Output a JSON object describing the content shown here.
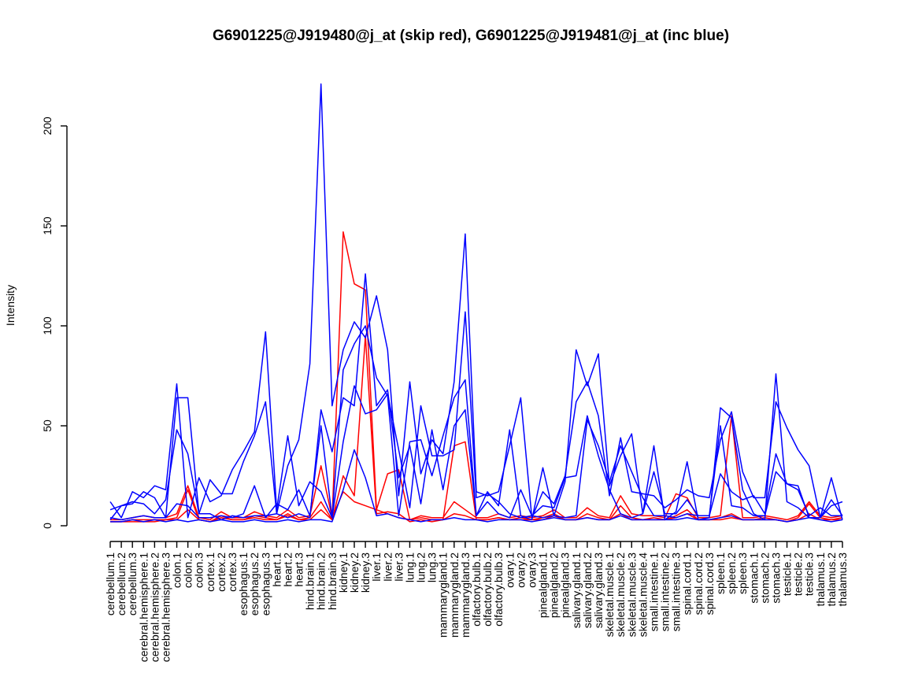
{
  "chart_data": {
    "type": "line",
    "title": "G6901225@J919480@j_at (skip red), G6901225@J919481@j_at (inc blue)",
    "xlabel": "",
    "ylabel": "Intensity",
    "ylim": [
      0,
      200
    ],
    "yticks": [
      0,
      50,
      100,
      150,
      200
    ],
    "grid": false,
    "categories": [
      "cerebellum.1",
      "cerebellum.2",
      "cerebellum.3",
      "cerebral.hemisphere.1",
      "cerebral.hemisphere.2",
      "cerebral.hemisphere.3",
      "colon.1",
      "colon.2",
      "colon.3",
      "cortex.1",
      "cortex.2",
      "cortex.3",
      "esophagus.1",
      "esophagus.2",
      "esophagus.3",
      "heart.1",
      "heart.2",
      "heart.3",
      "hind.brain.1",
      "hind.brain.2",
      "hind.brain.3",
      "kidney.1",
      "kidney.2",
      "kidney.3",
      "liver.1",
      "liver.2",
      "liver.3",
      "lung.1",
      "lung.2",
      "lung.3",
      "mammarygland.1",
      "mammarygland.2",
      "mammarygland.3",
      "olfactory.bulb.1",
      "olfactory.bulb.2",
      "olfactory.bulb.3",
      "ovary.1",
      "ovary.2",
      "ovary.3",
      "pinealgland.1",
      "pinealgland.2",
      "pinealgland.3",
      "salivary.gland.1",
      "salivary.gland.2",
      "salivary.gland.3",
      "skeletal.muscle.1",
      "skeletal.muscle.2",
      "skeletal.muscle.3",
      "skeletal.muscle.4",
      "small.intestine.1",
      "small.intestine.2",
      "small.intestine.3",
      "spinal.cord.1",
      "spinal.cord.2",
      "spinal.cord.3",
      "spleen.1",
      "spleen.2",
      "spleen.3",
      "stomach.1",
      "stomach.2",
      "stomach.3",
      "testicle.1",
      "testicle.2",
      "testicle.3",
      "thalamus.1",
      "thalamus.2",
      "thalamus.3"
    ],
    "tick_labels": [
      "cerebellum.1",
      "cerebellum.2",
      "cerebellum.3",
      "cerebral.hemisphere.1",
      "cerebral.hemisphere.2",
      "cerebral.hemisphere.3",
      "colon.1",
      "colon.2",
      "colon.3",
      "cortex.1",
      "cortex.2",
      "cortex.3",
      "esophagus.1",
      "esophagus.2",
      "esophagus.3",
      "heart.1",
      "heart.2",
      "heart.3",
      "hind.brain.1",
      "hind.brain.2",
      "hind.brain.3",
      "kidney.1",
      "kidney.2",
      "kidney.3",
      "liver.1",
      "liver.2",
      "liver.3",
      "lung.1",
      "lung.2",
      "lung.3",
      "mammarygland.1",
      "mammarygland.2",
      "mammarygland.3",
      "olfactory.bulb.1",
      "olfactory.bulb.2",
      "olfactory.bulb.3",
      "ovary.1",
      "ovary.2",
      "ovary.3",
      "pinealgland.1",
      "pinealgland.2",
      "pinealgland.3",
      "salivary.gland.1",
      "salivary.gland.2",
      "salivary.gland.3",
      "skeletal.muscle.1",
      "skeletal.muscle.2",
      "skeletal.muscle.3",
      "skeletal.muscle.4",
      "small.intestine.1",
      "small.intestine.2",
      "small.intestine.3",
      "spinal.cord.1",
      "spinal.cord.2",
      "spinal.cord.3",
      "spleen.1",
      "spleen.2",
      "spleen.3",
      "stomach.1",
      "stomach.2",
      "stomach.3",
      "testicle.1",
      "testicle.2",
      "testicle.3",
      "thalamus.1",
      "thalamus.2",
      "thalamus.3"
    ],
    "series": [
      {
        "color": "#ff0000",
        "values": [
          3,
          3,
          4,
          5,
          4,
          4,
          6,
          20,
          4,
          3,
          7,
          4,
          4,
          7,
          5,
          4,
          8,
          4,
          5,
          30,
          4,
          17,
          12,
          10,
          8,
          6,
          4,
          3,
          5,
          4,
          4,
          12,
          8,
          4,
          4,
          6,
          4,
          5,
          4,
          5,
          8,
          4,
          4,
          9,
          5,
          4,
          15,
          6,
          5,
          5,
          4,
          16,
          14,
          4,
          4,
          5,
          55,
          4,
          4,
          5,
          4,
          3,
          5,
          12,
          5,
          4,
          5
        ]
      },
      {
        "color": "#ff0000",
        "values": [
          2,
          2,
          3,
          3,
          3,
          3,
          4,
          18,
          3,
          2,
          5,
          3,
          3,
          5,
          4,
          3,
          6,
          3,
          4,
          12,
          3,
          147,
          121,
          118,
          8,
          26,
          28,
          3,
          4,
          3,
          3,
          40,
          42,
          3,
          3,
          4,
          3,
          4,
          3,
          4,
          6,
          3,
          3,
          6,
          4,
          3,
          10,
          4,
          3,
          4,
          3,
          5,
          8,
          3,
          3,
          4,
          6,
          3,
          3,
          4,
          3,
          2,
          4,
          11,
          4,
          3,
          4
        ]
      },
      {
        "color": "#ff0000",
        "values": [
          2,
          2,
          2,
          2,
          2,
          3,
          3,
          8,
          3,
          2,
          4,
          3,
          3,
          4,
          3,
          3,
          5,
          3,
          3,
          8,
          3,
          25,
          15,
          95,
          6,
          7,
          6,
          2,
          3,
          2,
          3,
          6,
          5,
          3,
          3,
          4,
          3,
          3,
          3,
          3,
          5,
          3,
          3,
          4,
          3,
          3,
          6,
          3,
          3,
          3,
          3,
          4,
          6,
          3,
          3,
          3,
          4,
          3,
          3,
          3,
          3,
          2,
          3,
          6,
          3,
          3,
          3
        ]
      },
      {
        "color": "#0000ff",
        "values": [
          12,
          4,
          17,
          14,
          20,
          18,
          71,
          4,
          24,
          12,
          15,
          28,
          37,
          47,
          97,
          8,
          45,
          10,
          22,
          17,
          4,
          78,
          91,
          100,
          74,
          65,
          5,
          42,
          43,
          25,
          45,
          64,
          73,
          5,
          17,
          10,
          48,
          5,
          3,
          29,
          5,
          22,
          88,
          70,
          86,
          20,
          35,
          46,
          6,
          40,
          3,
          7,
          32,
          3,
          4,
          59,
          54,
          18,
          6,
          3,
          76,
          12,
          9,
          4,
          4,
          24,
          3
        ]
      },
      {
        "color": "#0000ff",
        "values": [
          3,
          10,
          11,
          17,
          14,
          4,
          64,
          64,
          6,
          23,
          16,
          16,
          32,
          45,
          62,
          6,
          30,
          43,
          81,
          221,
          60,
          88,
          102,
          94,
          115,
          88,
          15,
          72,
          26,
          43,
          36,
          72,
          146,
          17,
          15,
          17,
          40,
          64,
          4,
          17,
          11,
          25,
          62,
          72,
          55,
          15,
          44,
          17,
          16,
          15,
          9,
          13,
          18,
          15,
          14,
          43,
          57,
          27,
          14,
          14,
          62,
          49,
          38,
          30,
          4,
          10,
          12
        ]
      },
      {
        "color": "#0000ff",
        "values": [
          8,
          10,
          12,
          11,
          6,
          13,
          48,
          36,
          6,
          6,
          3,
          5,
          4,
          5,
          5,
          6,
          4,
          6,
          4,
          58,
          37,
          64,
          60,
          126,
          60,
          68,
          24,
          40,
          11,
          48,
          18,
          50,
          58,
          5,
          12,
          6,
          4,
          18,
          5,
          10,
          9,
          24,
          25,
          55,
          35,
          18,
          6,
          4,
          6,
          27,
          6,
          6,
          13,
          5,
          5,
          26,
          17,
          13,
          15,
          6,
          36,
          21,
          18,
          5,
          9,
          5,
          5
        ]
      },
      {
        "color": "#0000ff",
        "values": [
          4,
          3,
          4,
          5,
          4,
          4,
          11,
          10,
          4,
          4,
          5,
          4,
          6,
          20,
          4,
          11,
          8,
          18,
          5,
          50,
          4,
          42,
          70,
          56,
          58,
          66,
          38,
          9,
          60,
          35,
          35,
          38,
          107,
          14,
          16,
          12,
          6,
          4,
          5,
          4,
          5,
          4,
          5,
          53,
          40,
          22,
          40,
          27,
          14,
          5,
          5,
          4,
          6,
          5,
          5,
          50,
          10,
          9,
          5,
          5,
          27,
          21,
          20,
          4,
          4,
          13,
          5
        ]
      },
      {
        "color": "#0000ff",
        "values": [
          2,
          2,
          3,
          2,
          3,
          2,
          3,
          2,
          3,
          2,
          3,
          2,
          2,
          3,
          2,
          2,
          3,
          2,
          3,
          3,
          2,
          18,
          38,
          24,
          5,
          6,
          4,
          3,
          2,
          3,
          3,
          4,
          3,
          3,
          2,
          3,
          3,
          3,
          2,
          3,
          4,
          3,
          3,
          4,
          3,
          3,
          5,
          3,
          3,
          3,
          3,
          3,
          4,
          3,
          3,
          4,
          5,
          3,
          3,
          3,
          3,
          2,
          3,
          4,
          3,
          2,
          3
        ]
      }
    ]
  }
}
